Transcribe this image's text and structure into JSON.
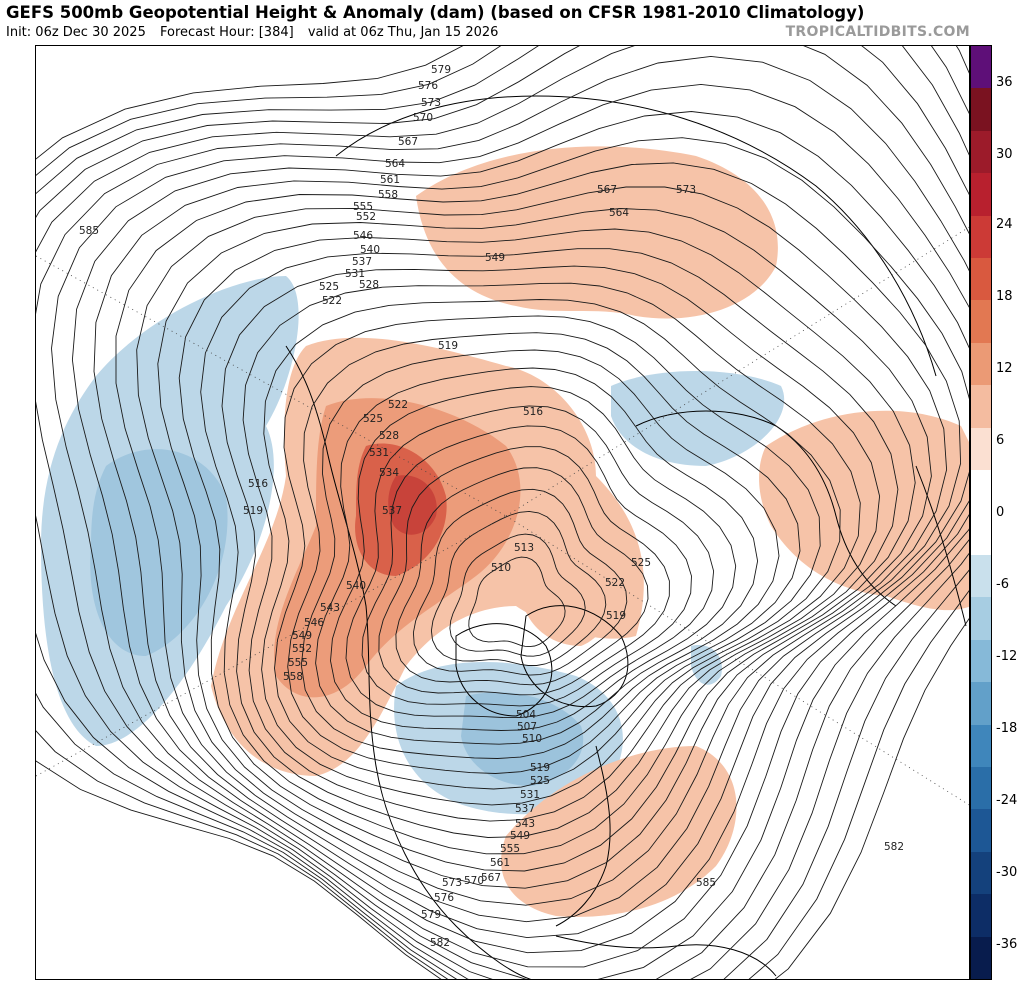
{
  "header": {
    "title": "GEFS 500mb Geopotential Height & Anomaly (dam) (based on CFSR 1981-2010 Climatology)",
    "init": "Init: 06z Dec 30 2025",
    "forecast_hour": "Forecast Hour: [384]",
    "valid": "valid at 06z Thu, Jan 15 2026",
    "source": "TROPICALTIDBITS.COM"
  },
  "colorbar": {
    "ticks": [
      "36",
      "30",
      "24",
      "18",
      "12",
      "6",
      "0",
      "-6",
      "-12",
      "-18",
      "-24",
      "-30",
      "-36"
    ],
    "colors": [
      "#5e0f78",
      "#7a1220",
      "#9c1b2a",
      "#b8202e",
      "#cc3a36",
      "#d9593f",
      "#e27852",
      "#eb9a75",
      "#f4bca0",
      "#fbe0d2",
      "#ffffff",
      "#ffffff",
      "#c9e0ec",
      "#a7cde2",
      "#86b9d8",
      "#62a0c9",
      "#3f86bb",
      "#2a6ea8",
      "#1d5795",
      "#14417c",
      "#0d2d66",
      "#081c4d"
    ]
  },
  "contour_labels": {
    "top": [
      "579",
      "576",
      "573",
      "570",
      "567",
      "564",
      "561",
      "558",
      "555",
      "552",
      "546",
      "540",
      "537",
      "531",
      "528",
      "525",
      "522"
    ],
    "nw": [
      "585",
      "516",
      "519"
    ],
    "pacific": [
      "522",
      "525",
      "528",
      "531",
      "534",
      "537",
      "540",
      "543",
      "546",
      "549",
      "552",
      "555",
      "558"
    ],
    "arctic": [
      "519",
      "516",
      "513",
      "510",
      "522",
      "525",
      "519"
    ],
    "eurasia": [
      "567",
      "564",
      "573",
      "549"
    ],
    "low": [
      "504",
      "507",
      "510",
      "519",
      "525",
      "531",
      "537",
      "543",
      "549",
      "555",
      "561",
      "567",
      "570",
      "573",
      "576",
      "579",
      "582",
      "585",
      "582"
    ]
  }
}
